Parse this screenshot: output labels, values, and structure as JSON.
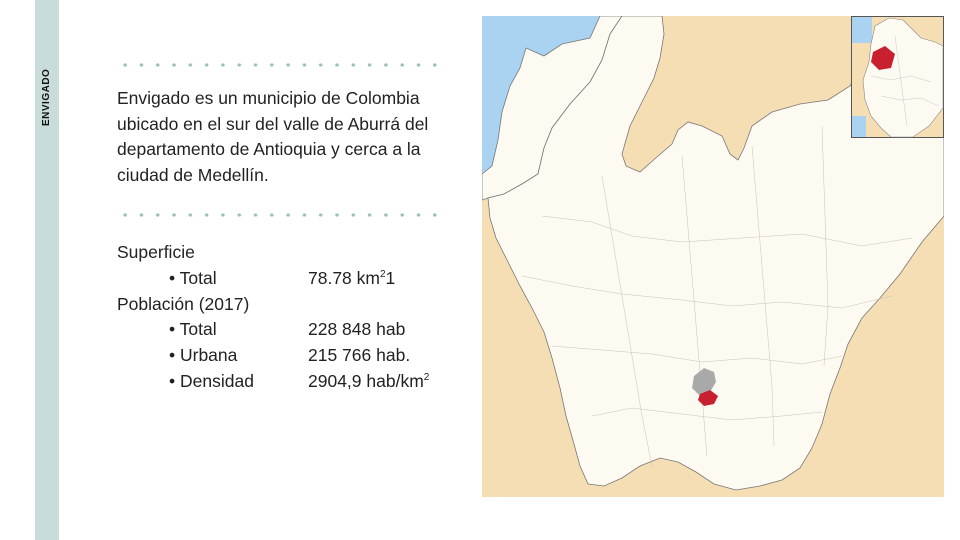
{
  "sidebar": {
    "label": "ENVIGADO"
  },
  "description": {
    "subject": "Envigado",
    "text": " es un municipio de Colombia ubicado en el sur del valle de Aburrá del departamento de Antioquia y cerca a la ciudad de Medellín."
  },
  "facts": {
    "surface_heading": "Superficie",
    "surface_total_label": "• Total",
    "surface_total_value": "78.78 km",
    "surface_total_sup": "2",
    "surface_total_note": "1",
    "population_heading": "Población (2017)",
    "population_total_label": "• Total",
    "population_total_value": "228 848 hab",
    "population_urban_label": "• Urbana",
    "population_urban_value": "215 766 hab.",
    "population_density_label": "• Densidad",
    "population_density_value": "2904,9 hab/km",
    "population_density_sup": "2"
  },
  "map": {
    "colors": {
      "land": "#fdfbf1",
      "surrounding": "#f5deb3",
      "sea": "#aad3f2",
      "highlight": "#c8202f",
      "metro": "#a9a9a9"
    }
  }
}
